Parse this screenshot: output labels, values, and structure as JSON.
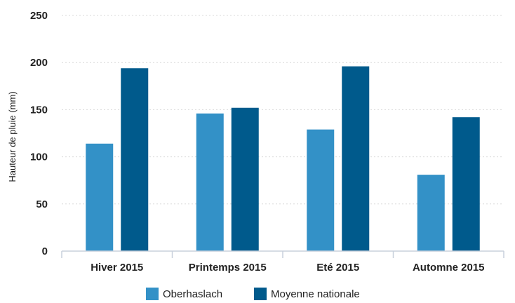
{
  "chart_data": {
    "type": "bar",
    "title": "",
    "xlabel": "",
    "ylabel": "Hauteur de pluie (mm)",
    "ylim": [
      0,
      250
    ],
    "yticks": [
      0,
      50,
      100,
      150,
      200,
      250
    ],
    "grid": true,
    "legend_position": "bottom",
    "categories": [
      "Hiver 2015",
      "Printemps 2015",
      "Eté 2015",
      "Automne 2015"
    ],
    "series": [
      {
        "name": "Oberhaslach",
        "color": "#3391c7",
        "values": [
          114,
          146,
          129,
          81
        ]
      },
      {
        "name": "Moyenne nationale",
        "color": "#005a8c",
        "values": [
          194,
          152,
          196,
          142
        ]
      }
    ]
  }
}
